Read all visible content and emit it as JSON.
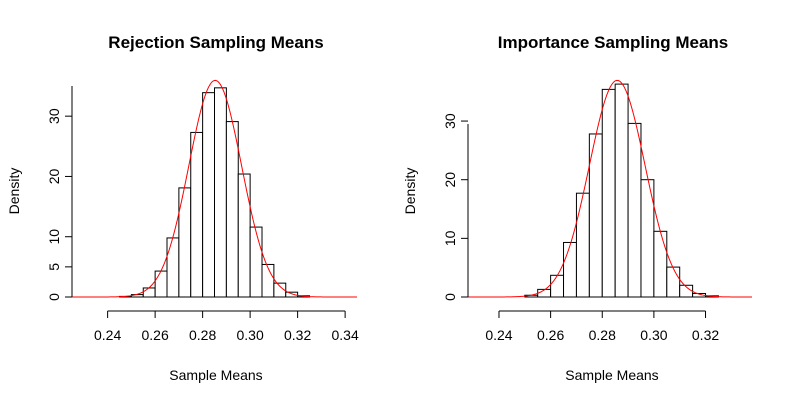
{
  "chart_data": [
    {
      "type": "bar",
      "title": "Rejection Sampling Means",
      "xlabel": "Sample Means",
      "ylabel": "Density",
      "xlim": [
        0.225,
        0.345
      ],
      "ylim": [
        0,
        36
      ],
      "xticks": [
        0.24,
        0.26,
        0.28,
        0.3,
        0.32,
        0.34
      ],
      "xtick_labels": [
        "0.24",
        "0.26",
        "0.28",
        "0.30",
        "0.32",
        "0.34"
      ],
      "yticks": [
        0,
        5,
        10,
        20,
        30
      ],
      "ytick_labels": [
        "0",
        "5",
        "10",
        "20",
        "30"
      ],
      "bin_width": 0.005,
      "bins": [
        {
          "x0": 0.245,
          "x1": 0.25,
          "density": 0.1
        },
        {
          "x0": 0.25,
          "x1": 0.255,
          "density": 0.4
        },
        {
          "x0": 0.255,
          "x1": 0.26,
          "density": 1.5
        },
        {
          "x0": 0.26,
          "x1": 0.265,
          "density": 4.3
        },
        {
          "x0": 0.265,
          "x1": 0.27,
          "density": 9.8
        },
        {
          "x0": 0.27,
          "x1": 0.275,
          "density": 18.1
        },
        {
          "x0": 0.275,
          "x1": 0.28,
          "density": 27.3
        },
        {
          "x0": 0.28,
          "x1": 0.285,
          "density": 33.9
        },
        {
          "x0": 0.285,
          "x1": 0.29,
          "density": 34.7
        },
        {
          "x0": 0.29,
          "x1": 0.295,
          "density": 29.1
        },
        {
          "x0": 0.295,
          "x1": 0.3,
          "density": 20.4
        },
        {
          "x0": 0.3,
          "x1": 0.305,
          "density": 11.6
        },
        {
          "x0": 0.305,
          "x1": 0.31,
          "density": 5.4
        },
        {
          "x0": 0.31,
          "x1": 0.315,
          "density": 2.3
        },
        {
          "x0": 0.315,
          "x1": 0.32,
          "density": 0.8
        },
        {
          "x0": 0.32,
          "x1": 0.325,
          "density": 0.2
        }
      ],
      "density_curve": {
        "mean": 0.2853,
        "sd": 0.0111,
        "xrange": [
          0.225,
          0.345
        ],
        "color": "#ff0000"
      }
    },
    {
      "type": "bar",
      "title": "Importance Sampling Means",
      "xlabel": "Sample Means",
      "ylabel": "Density",
      "xlim": [
        0.228,
        0.338
      ],
      "ylim": [
        0,
        37
      ],
      "xticks": [
        0.24,
        0.26,
        0.28,
        0.3,
        0.32
      ],
      "xtick_labels": [
        "0.24",
        "0.26",
        "0.28",
        "0.30",
        "0.32"
      ],
      "yticks": [
        0,
        10,
        20,
        30
      ],
      "ytick_labels": [
        "0",
        "10",
        "20",
        "30"
      ],
      "bin_width": 0.005,
      "bins": [
        {
          "x0": 0.25,
          "x1": 0.255,
          "density": 0.3
        },
        {
          "x0": 0.255,
          "x1": 0.26,
          "density": 1.3
        },
        {
          "x0": 0.26,
          "x1": 0.265,
          "density": 3.7
        },
        {
          "x0": 0.265,
          "x1": 0.27,
          "density": 9.3
        },
        {
          "x0": 0.27,
          "x1": 0.275,
          "density": 17.7
        },
        {
          "x0": 0.275,
          "x1": 0.28,
          "density": 27.8
        },
        {
          "x0": 0.28,
          "x1": 0.285,
          "density": 35.4
        },
        {
          "x0": 0.285,
          "x1": 0.29,
          "density": 36.3
        },
        {
          "x0": 0.29,
          "x1": 0.295,
          "density": 29.6
        },
        {
          "x0": 0.295,
          "x1": 0.3,
          "density": 20.0
        },
        {
          "x0": 0.3,
          "x1": 0.305,
          "density": 11.2
        },
        {
          "x0": 0.305,
          "x1": 0.31,
          "density": 5.1
        },
        {
          "x0": 0.31,
          "x1": 0.315,
          "density": 2.0
        },
        {
          "x0": 0.315,
          "x1": 0.32,
          "density": 0.6
        },
        {
          "x0": 0.32,
          "x1": 0.325,
          "density": 0.2
        }
      ],
      "density_curve": {
        "mean": 0.2858,
        "sd": 0.0108,
        "xrange": [
          0.228,
          0.338
        ],
        "color": "#ff0000"
      }
    }
  ]
}
